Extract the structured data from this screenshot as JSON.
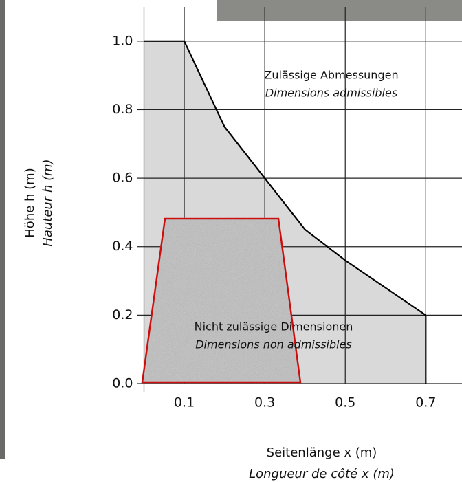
{
  "chart_data": {
    "type": "area",
    "x": [
      0,
      0.1,
      0.2,
      0.3,
      0.4,
      0.5,
      0.6,
      0.7
    ],
    "values": [
      1.0,
      1.0,
      0.75,
      0.6,
      0.45,
      0.36,
      0.28,
      0.2
    ],
    "color": "#d9d9d9",
    "line_color": "#000000",
    "xlim": [
      0,
      0.79
    ],
    "ylim": [
      0,
      1.1
    ],
    "xticks": [
      0.1,
      0.3,
      0.5,
      0.7
    ],
    "yticks": [
      {
        "value": 0,
        "label": "0.0"
      },
      0.2,
      0.4,
      0.6,
      0.8,
      {
        "value": 1,
        "label": "1.0"
      }
    ],
    "grid": true,
    "xlabel": "Seitenlänge x (m)",
    "xlabel_2": "Longueur de côté x (m)",
    "ylabel": "Höhe h (m)",
    "ylabel_2": "Hauteur h (m)",
    "annotations": [
      "Zulässige Abmessungen",
      "Dimensions admissibles",
      "Nicht zulässige Dimensionen",
      "Dimensions non admissibles"
    ]
  }
}
